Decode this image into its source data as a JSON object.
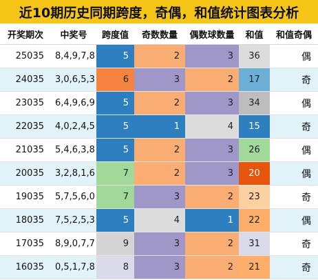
{
  "title": "近10期历史同期跨度，奇偶，和值统计图表分析",
  "headers": [
    "开奖期次",
    "中奖号",
    "跨度值",
    "奇数数量",
    "偶数球数量",
    "和值",
    "和值奇偶"
  ],
  "rows": [
    {
      "period": "25035",
      "numbers": "8,4,9,7,8",
      "span": "5",
      "odd": "2",
      "even": "3",
      "sum": "36",
      "parity": "偶",
      "colors": {
        "span": "#2e7fc0",
        "odd": "#f9ad72",
        "even": "#9e97c8",
        "sum": "#dcdcdc"
      }
    },
    {
      "period": "24035",
      "numbers": "3,0,6,5,3",
      "span": "6",
      "odd": "3",
      "even": "2",
      "sum": "17",
      "parity": "奇",
      "colors": {
        "span": "#f58440",
        "odd": "#9e97c8",
        "even": "#f9ad72",
        "sum": "#6baed6"
      }
    },
    {
      "period": "23035",
      "numbers": "6,4,9,6,9",
      "span": "5",
      "odd": "2",
      "even": "3",
      "sum": "34",
      "parity": "偶",
      "colors": {
        "span": "#2e7fc0",
        "odd": "#f9ad72",
        "even": "#9e97c8",
        "sum": "#bdbdbd"
      }
    },
    {
      "period": "22035",
      "numbers": "4,0,2,4,5",
      "span": "5",
      "odd": "1",
      "even": "4",
      "sum": "15",
      "parity": "奇",
      "colors": {
        "span": "#2e7fc0",
        "odd": "#2e7fc0",
        "even": "#dcdcdc",
        "sum": "#2e7fc0"
      }
    },
    {
      "period": "21035",
      "numbers": "5,4,6,3,8",
      "span": "5",
      "odd": "2",
      "even": "3",
      "sum": "26",
      "parity": "偶",
      "colors": {
        "span": "#2e7fc0",
        "odd": "#f9ad72",
        "even": "#9e97c8",
        "sum": "#a1d99b"
      }
    },
    {
      "period": "20035",
      "numbers": "3,2,8,1,6",
      "span": "7",
      "odd": "2",
      "even": "3",
      "sum": "20",
      "parity": "偶",
      "colors": {
        "span": "#a1d99b",
        "odd": "#f9ad72",
        "even": "#9e97c8",
        "sum": "#e6550d"
      }
    },
    {
      "period": "19035",
      "numbers": "5,7,5,6,0",
      "span": "7",
      "odd": "3",
      "even": "2",
      "sum": "23",
      "parity": "奇",
      "colors": {
        "span": "#a1d99b",
        "odd": "#9e97c8",
        "even": "#f9ad72",
        "sum": "#fdd0a2"
      }
    },
    {
      "period": "18035",
      "numbers": "7,5,2,5,3",
      "span": "5",
      "odd": "4",
      "even": "1",
      "sum": "22",
      "parity": "偶",
      "colors": {
        "span": "#2e7fc0",
        "odd": "#dcdcdc",
        "even": "#2e7fc0",
        "sum": "#fdae6b"
      }
    },
    {
      "period": "17035",
      "numbers": "8,9,0,7,7",
      "span": "9",
      "odd": "3",
      "even": "2",
      "sum": "31",
      "parity": "奇",
      "colors": {
        "span": "#d4d4d4",
        "odd": "#9e97c8",
        "even": "#f9ad72",
        "sum": "#dadaeb"
      }
    },
    {
      "period": "16035",
      "numbers": "0,5,1,7,8",
      "span": "8",
      "odd": "3",
      "even": "2",
      "sum": "21",
      "parity": "奇",
      "colors": {
        "span": "#dadaeb",
        "odd": "#9e97c8",
        "even": "#f9ad72",
        "sum": "#fdae6b"
      }
    }
  ]
}
